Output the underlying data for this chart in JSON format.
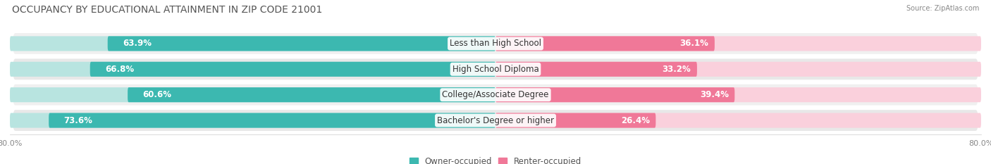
{
  "title": "OCCUPANCY BY EDUCATIONAL ATTAINMENT IN ZIP CODE 21001",
  "source": "Source: ZipAtlas.com",
  "categories": [
    "Less than High School",
    "High School Diploma",
    "College/Associate Degree",
    "Bachelor's Degree or higher"
  ],
  "owner_values": [
    63.9,
    66.8,
    60.6,
    73.6
  ],
  "renter_values": [
    36.1,
    33.2,
    39.4,
    26.4
  ],
  "owner_color": "#3cb8b0",
  "renter_color": "#f07898",
  "owner_color_light": "#b8e4e0",
  "renter_color_light": "#fad0dc",
  "row_bg_colors": [
    "#f0f0f0",
    "#e8e8e8"
  ],
  "xlim_left": -80.0,
  "xlim_right": 80.0,
  "legend_labels": [
    "Owner-occupied",
    "Renter-occupied"
  ],
  "title_fontsize": 10,
  "label_fontsize": 8.5,
  "value_fontsize": 8.5,
  "tick_fontsize": 8,
  "bar_height": 0.58
}
